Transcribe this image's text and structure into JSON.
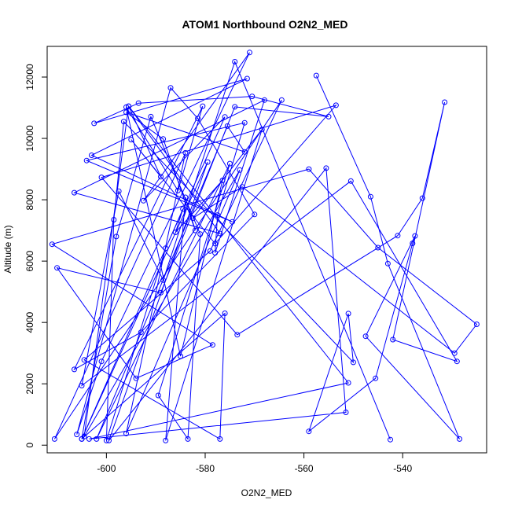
{
  "chart_data": {
    "type": "line",
    "title": "ATOM1 Northbound O2N2_MED",
    "xlabel": "O2N2_MED",
    "ylabel": "Altitude (m)",
    "xlim": [
      -612,
      -523
    ],
    "ylim": [
      -250,
      13000
    ],
    "x_ticks": [
      -600,
      -580,
      -560,
      -540
    ],
    "x_tick_labels": [
      "-600",
      "-580",
      "-560",
      "-540"
    ],
    "y_ticks": [
      0,
      2000,
      4000,
      6000,
      8000,
      10000,
      12000
    ],
    "y_tick_labels": [
      "0",
      "2000",
      "4000",
      "6000",
      "8000",
      "10000",
      "12000"
    ],
    "grid": false,
    "legend": "none",
    "line_color": "#0000ff",
    "marker": "open-circle",
    "series": [
      {
        "x": [
          -557.5,
          -546.5,
          -543,
          -528.5,
          -547.5,
          -537.5,
          -538,
          -545.5,
          -559,
          -551,
          -550,
          -596.5,
          -598.5,
          -600,
          -588,
          -576,
          -592.5,
          -571,
          -601,
          -606,
          -587,
          -581.5,
          -570,
          -593,
          -606.5,
          -580.5,
          -585.5,
          -596,
          -585,
          -576.5,
          -586,
          -584.5,
          -605,
          -576,
          -577,
          -604.5,
          -579,
          -564.5,
          -610.5,
          -584,
          -596,
          -573,
          -604.5,
          -595.5,
          -551,
          -603.5,
          -551.5,
          -555.5,
          -599.5,
          -579.5,
          -605,
          -598,
          -591,
          -581,
          -583.5,
          -589.5,
          -575,
          -602,
          -575.5,
          -572,
          -596,
          -588.5,
          -582,
          -584,
          -588,
          -568.5,
          -582.5,
          -572.5,
          -529.5,
          -525,
          -545,
          -559,
          -611,
          -578.5,
          -594,
          -610,
          -589,
          -574,
          -555,
          -570.5,
          -593.5,
          -602.5,
          -571.5,
          -603,
          -574.5,
          -604,
          -572,
          -577.5,
          -578,
          -568,
          -606.5,
          -577,
          -595.5,
          -589,
          -595,
          -578,
          -553.5,
          -601,
          -573.5,
          -541,
          -536,
          -531.5,
          -542,
          -529,
          -550.5,
          -605,
          -597.5,
          -588.5,
          -574,
          -542.5
        ],
        "y": [
          12050,
          8100,
          5920,
          200,
          3550,
          6820,
          6580,
          2180,
          450,
          4290,
          2700,
          10550,
          7350,
          150,
          6420,
          10700,
          7970,
          12800,
          2730,
          350,
          11650,
          10650,
          7520,
          3680,
          2470,
          11050,
          8300,
          11020,
          2900,
          8630,
          6940,
          7700,
          200,
          4300,
          200,
          2780,
          6330,
          11250,
          200,
          9530,
          380,
          8970,
          280,
          11050,
          2030,
          200,
          1070,
          9030,
          150,
          9230,
          200,
          6800,
          10710,
          6880,
          200,
          1620,
          9180,
          200,
          10400,
          9560,
          10850,
          9980,
          7000,
          8080,
          150,
          10290,
          7400,
          8420,
          3000,
          3940,
          6440,
          9000,
          6550,
          3270,
          2180,
          5780,
          4970,
          11030,
          10710,
          11370,
          11150,
          10490,
          11950,
          9450,
          7280,
          9280,
          10510,
          7500,
          6270,
          11250,
          8230,
          6900,
          11050,
          8750,
          9960,
          6570,
          11080,
          8730,
          3600,
          6830,
          8050,
          11180,
          3440,
          2730,
          8610,
          1940,
          8280,
          5380,
          12500,
          180
        ]
      }
    ]
  }
}
